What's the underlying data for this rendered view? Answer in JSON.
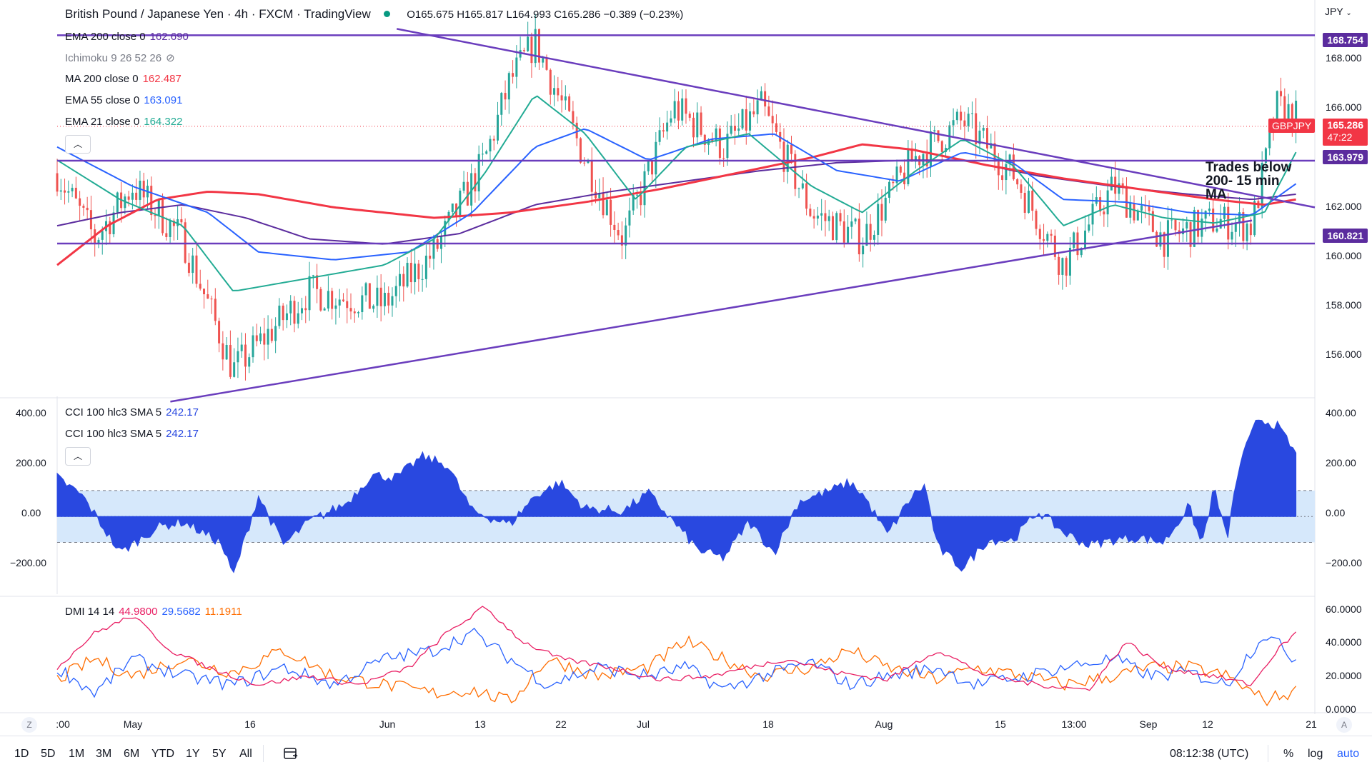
{
  "header": {
    "title": "British Pound / Japanese Yen · 4h · FXCM · TradingView",
    "ohlc": "O165.675 H165.817 L164.993 C165.286 −0.389 (−0.23%)"
  },
  "currency": "JPY",
  "legend": [
    {
      "name": "EMA 200 close 0",
      "value": "162.690",
      "color": "#5b2c9e"
    },
    {
      "name": "Ichimoku 9 26 52 26",
      "value": "",
      "color": "#787b86"
    },
    {
      "name": "MA 200 close 0",
      "value": "162.487",
      "color": "#f23645"
    },
    {
      "name": "EMA 55 close 0",
      "value": "163.091",
      "color": "#2962ff"
    },
    {
      "name": "EMA 21 close 0",
      "value": "164.322",
      "color": "#22ab94"
    }
  ],
  "cci_legend": [
    {
      "name": "CCI 100 hlc3 SMA 5",
      "value": "242.17"
    },
    {
      "name": "CCI 100 hlc3 SMA 5",
      "value": "242.17"
    }
  ],
  "dmi_legend": {
    "name": "DMI 14 14",
    "adx": "44.9800",
    "plus": "29.5682",
    "minus": "11.1911"
  },
  "annotation": [
    "Trades below",
    "200- 15 min",
    "MA"
  ],
  "price_tags": [
    {
      "value": "168.754",
      "color": "#5b2c9e"
    },
    {
      "value": "165.286",
      "color": "#f23645",
      "countdown": "47:22",
      "symbol": "GBPJPY"
    },
    {
      "value": "163.979",
      "color": "#5b2c9e"
    },
    {
      "value": "160.821",
      "color": "#5b2c9e"
    }
  ],
  "main_axis": [
    "168.000",
    "166.000",
    "162.000",
    "160.000",
    "158.000",
    "156.000"
  ],
  "cci_axis": [
    "400.00",
    "200.00",
    "0.00",
    "−200.00"
  ],
  "dmi_axis": [
    "60.0000",
    "40.0000",
    "20.0000",
    "0.0000"
  ],
  "x_axis": [
    ":00",
    "May",
    "16",
    "Jun",
    "13",
    "22",
    "Jul",
    "18",
    "Aug",
    "15",
    "13:00",
    "Sep",
    "12",
    "21"
  ],
  "timeframes": [
    "1D",
    "5D",
    "1M",
    "3M",
    "6M",
    "YTD",
    "1Y",
    "5Y",
    "All"
  ],
  "clock": "08:12:38 (UTC)",
  "bottom_right": [
    "%",
    "log",
    "auto"
  ],
  "colors": {
    "up": "#26a69a",
    "down": "#ef5350",
    "ema21": "#22ab94",
    "ema55": "#2962ff",
    "ema200": "#5b2c9e",
    "ma200": "#f23645",
    "trend": "#6a3dbd",
    "cci": "#2948e0",
    "cci_band": "#d6e8fb",
    "adx": "#e91e63",
    "di_plus": "#2962ff",
    "di_minus": "#ff6d00"
  },
  "chart_data": {
    "type": "line",
    "symbol": "GBPJPY",
    "main_ylim": [
      155,
      169.5
    ],
    "cci_ylim": [
      -300,
      450
    ],
    "dmi_ylim": [
      0,
      65
    ],
    "horizontal_levels": [
      168.754,
      163.979,
      160.821
    ],
    "trendlines": [
      {
        "from": [
          0.27,
          169.0
        ],
        "to": [
          1.0,
          162.2
        ]
      },
      {
        "from": [
          0.09,
          154.8
        ],
        "to": [
          0.95,
          161.7
        ]
      }
    ],
    "price_path": [
      [
        0,
        163.5
      ],
      [
        0.03,
        161
      ],
      [
        0.06,
        163
      ],
      [
        0.1,
        161
      ],
      [
        0.14,
        156
      ],
      [
        0.2,
        159
      ],
      [
        0.26,
        158.5
      ],
      [
        0.3,
        160.5
      ],
      [
        0.34,
        164
      ],
      [
        0.36,
        167
      ],
      [
        0.38,
        168.5
      ],
      [
        0.42,
        164
      ],
      [
        0.45,
        161
      ],
      [
        0.49,
        166
      ],
      [
        0.53,
        164.5
      ],
      [
        0.56,
        166
      ],
      [
        0.6,
        162
      ],
      [
        0.64,
        161
      ],
      [
        0.68,
        164
      ],
      [
        0.72,
        165.5
      ],
      [
        0.76,
        163.5
      ],
      [
        0.8,
        160
      ],
      [
        0.84,
        163
      ],
      [
        0.88,
        161
      ],
      [
        0.92,
        161.7
      ],
      [
        0.95,
        161.5
      ],
      [
        0.97,
        166
      ],
      [
        1.0,
        165.3
      ]
    ],
    "ema21_path": [
      [
        0,
        164
      ],
      [
        0.05,
        162.5
      ],
      [
        0.1,
        161.5
      ],
      [
        0.14,
        159
      ],
      [
        0.2,
        159.5
      ],
      [
        0.26,
        160
      ],
      [
        0.3,
        161
      ],
      [
        0.34,
        163.5
      ],
      [
        0.38,
        166.5
      ],
      [
        0.42,
        165
      ],
      [
        0.46,
        162.5
      ],
      [
        0.5,
        164.5
      ],
      [
        0.55,
        165
      ],
      [
        0.6,
        163
      ],
      [
        0.64,
        162
      ],
      [
        0.68,
        163.5
      ],
      [
        0.72,
        164.8
      ],
      [
        0.76,
        163.8
      ],
      [
        0.8,
        161.5
      ],
      [
        0.84,
        162.3
      ],
      [
        0.88,
        161.8
      ],
      [
        0.92,
        161.6
      ],
      [
        0.96,
        162
      ],
      [
        0.985,
        164.3
      ]
    ],
    "ema55_path": [
      [
        0,
        164.5
      ],
      [
        0.06,
        163
      ],
      [
        0.12,
        162
      ],
      [
        0.16,
        160.5
      ],
      [
        0.22,
        160.2
      ],
      [
        0.28,
        160.5
      ],
      [
        0.33,
        162
      ],
      [
        0.38,
        164.5
      ],
      [
        0.42,
        165.2
      ],
      [
        0.47,
        164
      ],
      [
        0.52,
        164.8
      ],
      [
        0.57,
        165
      ],
      [
        0.62,
        163.6
      ],
      [
        0.67,
        163.2
      ],
      [
        0.72,
        164.3
      ],
      [
        0.76,
        163.9
      ],
      [
        0.8,
        162.5
      ],
      [
        0.85,
        162.4
      ],
      [
        0.9,
        162
      ],
      [
        0.95,
        161.9
      ],
      [
        0.985,
        163.1
      ]
    ],
    "ema200_path": [
      [
        0,
        161.5
      ],
      [
        0.05,
        162
      ],
      [
        0.1,
        162.3
      ],
      [
        0.15,
        161.8
      ],
      [
        0.2,
        161
      ],
      [
        0.26,
        160.8
      ],
      [
        0.32,
        161.2
      ],
      [
        0.38,
        162.3
      ],
      [
        0.44,
        162.8
      ],
      [
        0.5,
        163.2
      ],
      [
        0.56,
        163.6
      ],
      [
        0.62,
        163.9
      ],
      [
        0.68,
        164
      ],
      [
        0.72,
        164
      ],
      [
        0.78,
        163.4
      ],
      [
        0.84,
        163
      ],
      [
        0.9,
        162.7
      ],
      [
        0.95,
        162.5
      ],
      [
        0.985,
        162.7
      ]
    ],
    "ma200_path": [
      [
        0,
        160
      ],
      [
        0.04,
        161.5
      ],
      [
        0.08,
        162.5
      ],
      [
        0.12,
        162.8
      ],
      [
        0.16,
        162.7
      ],
      [
        0.22,
        162.2
      ],
      [
        0.3,
        161.8
      ],
      [
        0.36,
        162
      ],
      [
        0.42,
        162.4
      ],
      [
        0.48,
        162.9
      ],
      [
        0.54,
        163.5
      ],
      [
        0.6,
        164.1
      ],
      [
        0.64,
        164.6
      ],
      [
        0.68,
        164.4
      ],
      [
        0.74,
        163.8
      ],
      [
        0.8,
        163.3
      ],
      [
        0.86,
        162.9
      ],
      [
        0.92,
        162.5
      ],
      [
        0.96,
        162.3
      ],
      [
        0.985,
        162.5
      ]
    ],
    "cci_path": [
      [
        0,
        150
      ],
      [
        0.02,
        80
      ],
      [
        0.05,
        -140
      ],
      [
        0.08,
        -40
      ],
      [
        0.1,
        -20
      ],
      [
        0.13,
        -100
      ],
      [
        0.14,
        -230
      ],
      [
        0.16,
        80
      ],
      [
        0.18,
        -110
      ],
      [
        0.2,
        -20
      ],
      [
        0.23,
        50
      ],
      [
        0.25,
        160
      ],
      [
        0.27,
        150
      ],
      [
        0.29,
        230
      ],
      [
        0.31,
        200
      ],
      [
        0.33,
        20
      ],
      [
        0.36,
        -30
      ],
      [
        0.38,
        80
      ],
      [
        0.4,
        130
      ],
      [
        0.42,
        30
      ],
      [
        0.45,
        20
      ],
      [
        0.47,
        90
      ],
      [
        0.49,
        -20
      ],
      [
        0.51,
        -130
      ],
      [
        0.53,
        -160
      ],
      [
        0.55,
        -20
      ],
      [
        0.57,
        -140
      ],
      [
        0.59,
        60
      ],
      [
        0.61,
        90
      ],
      [
        0.63,
        130
      ],
      [
        0.64,
        90
      ],
      [
        0.66,
        -70
      ],
      [
        0.68,
        80
      ],
      [
        0.69,
        120
      ],
      [
        0.7,
        -120
      ],
      [
        0.72,
        -200
      ],
      [
        0.74,
        -90
      ],
      [
        0.76,
        -90
      ],
      [
        0.78,
        20
      ],
      [
        0.8,
        -60
      ],
      [
        0.82,
        -110
      ],
      [
        0.84,
        -90
      ],
      [
        0.86,
        -80
      ],
      [
        0.88,
        -100
      ],
      [
        0.9,
        40
      ],
      [
        0.91,
        -110
      ],
      [
        0.92,
        110
      ],
      [
        0.93,
        -90
      ],
      [
        0.94,
        200
      ],
      [
        0.955,
        380
      ],
      [
        0.97,
        350
      ],
      [
        0.985,
        242
      ]
    ],
    "adx_path": [
      [
        0,
        25
      ],
      [
        0.03,
        45
      ],
      [
        0.06,
        55
      ],
      [
        0.09,
        35
      ],
      [
        0.12,
        25
      ],
      [
        0.16,
        15
      ],
      [
        0.2,
        20
      ],
      [
        0.24,
        15
      ],
      [
        0.28,
        25
      ],
      [
        0.31,
        45
      ],
      [
        0.34,
        60
      ],
      [
        0.37,
        40
      ],
      [
        0.4,
        30
      ],
      [
        0.44,
        25
      ],
      [
        0.48,
        18
      ],
      [
        0.52,
        20
      ],
      [
        0.55,
        25
      ],
      [
        0.58,
        30
      ],
      [
        0.62,
        22
      ],
      [
        0.66,
        18
      ],
      [
        0.7,
        35
      ],
      [
        0.74,
        20
      ],
      [
        0.78,
        15
      ],
      [
        0.82,
        12
      ],
      [
        0.85,
        40
      ],
      [
        0.88,
        25
      ],
      [
        0.92,
        20
      ],
      [
        0.95,
        15
      ],
      [
        0.97,
        35
      ],
      [
        0.985,
        44.98
      ]
    ],
    "di_plus_path": [
      [
        0,
        25
      ],
      [
        0.03,
        10
      ],
      [
        0.06,
        30
      ],
      [
        0.1,
        20
      ],
      [
        0.14,
        15
      ],
      [
        0.18,
        25
      ],
      [
        0.22,
        15
      ],
      [
        0.26,
        30
      ],
      [
        0.3,
        35
      ],
      [
        0.33,
        45
      ],
      [
        0.36,
        30
      ],
      [
        0.39,
        15
      ],
      [
        0.43,
        25
      ],
      [
        0.47,
        20
      ],
      [
        0.5,
        25
      ],
      [
        0.53,
        12
      ],
      [
        0.56,
        20
      ],
      [
        0.6,
        28
      ],
      [
        0.63,
        15
      ],
      [
        0.66,
        20
      ],
      [
        0.7,
        25
      ],
      [
        0.73,
        15
      ],
      [
        0.77,
        20
      ],
      [
        0.8,
        25
      ],
      [
        0.84,
        30
      ],
      [
        0.87,
        20
      ],
      [
        0.9,
        22
      ],
      [
        0.93,
        15
      ],
      [
        0.96,
        45
      ],
      [
        0.985,
        29.57
      ]
    ],
    "di_minus_path": [
      [
        0,
        18
      ],
      [
        0.03,
        30
      ],
      [
        0.06,
        20
      ],
      [
        0.1,
        30
      ],
      [
        0.14,
        22
      ],
      [
        0.18,
        35
      ],
      [
        0.22,
        20
      ],
      [
        0.26,
        15
      ],
      [
        0.3,
        10
      ],
      [
        0.33,
        12
      ],
      [
        0.36,
        5
      ],
      [
        0.39,
        30
      ],
      [
        0.43,
        20
      ],
      [
        0.47,
        25
      ],
      [
        0.5,
        40
      ],
      [
        0.53,
        30
      ],
      [
        0.56,
        20
      ],
      [
        0.6,
        25
      ],
      [
        0.63,
        35
      ],
      [
        0.66,
        25
      ],
      [
        0.7,
        18
      ],
      [
        0.73,
        25
      ],
      [
        0.77,
        20
      ],
      [
        0.8,
        15
      ],
      [
        0.84,
        20
      ],
      [
        0.87,
        25
      ],
      [
        0.9,
        25
      ],
      [
        0.93,
        20
      ],
      [
        0.96,
        6
      ],
      [
        0.985,
        11.19
      ]
    ]
  }
}
